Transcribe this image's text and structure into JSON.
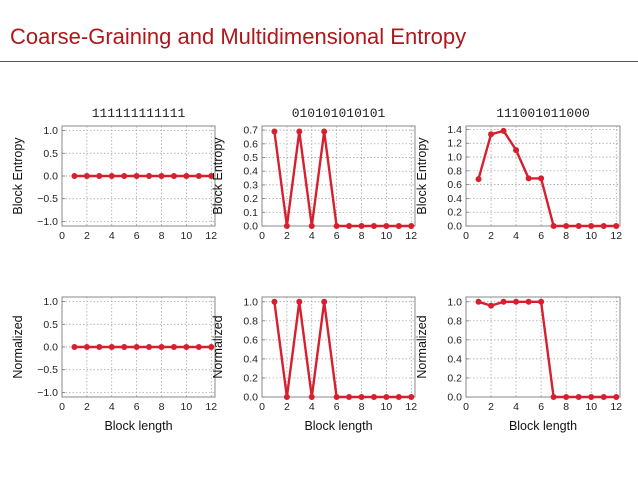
{
  "title": "Coarse-Graining and Multidimensional Entropy",
  "chart_data": [
    {
      "type": "line",
      "title": "111111111111",
      "xlabel": "",
      "ylabel": "Block Entropy",
      "xlim": [
        0,
        12.3
      ],
      "ylim": [
        -1.1,
        1.1
      ],
      "xticks": [
        0,
        2,
        4,
        6,
        8,
        10,
        12
      ],
      "yticks": [
        "1.0",
        "0.5",
        "0.0",
        "-0.5",
        "-1.0"
      ],
      "x": [
        1,
        2,
        3,
        4,
        5,
        6,
        7,
        8,
        9,
        10,
        11,
        12
      ],
      "values": [
        0,
        0,
        0,
        0,
        0,
        0,
        0,
        0,
        0,
        0,
        0,
        0
      ],
      "grid": true,
      "color": "#d6202f"
    },
    {
      "type": "line",
      "title": "010101010101",
      "xlabel": "",
      "ylabel": "Block Entropy",
      "xlim": [
        0,
        12.3
      ],
      "ylim": [
        0,
        0.73
      ],
      "xticks": [
        0,
        2,
        4,
        6,
        8,
        10,
        12
      ],
      "yticks": [
        "0.7",
        "0.6",
        "0.5",
        "0.4",
        "0.3",
        "0.2",
        "0.1",
        "0.0"
      ],
      "x": [
        1,
        2,
        3,
        4,
        5,
        6,
        7,
        8,
        9,
        10,
        11,
        12
      ],
      "values": [
        0.69,
        0,
        0.69,
        0,
        0.69,
        0,
        0,
        0,
        0,
        0,
        0,
        0
      ],
      "grid": true,
      "color": "#d6202f"
    },
    {
      "type": "line",
      "title": "111001011000",
      "xlabel": "",
      "ylabel": "Block Entropy",
      "xlim": [
        0,
        12.3
      ],
      "ylim": [
        0,
        1.45
      ],
      "xticks": [
        0,
        2,
        4,
        6,
        8,
        10,
        12
      ],
      "yticks": [
        "1.4",
        "1.2",
        "1.0",
        "0.8",
        "0.6",
        "0.4",
        "0.2",
        "0.0"
      ],
      "x": [
        1,
        2,
        3,
        4,
        5,
        6,
        7,
        8,
        9,
        10,
        11,
        12
      ],
      "values": [
        0.68,
        1.33,
        1.38,
        1.1,
        0.69,
        0.69,
        0,
        0,
        0,
        0,
        0,
        0
      ],
      "grid": true,
      "color": "#d6202f"
    },
    {
      "type": "line",
      "title": "",
      "xlabel": "Block length",
      "ylabel": "Normalized",
      "xlim": [
        0,
        12.3
      ],
      "ylim": [
        -1.1,
        1.1
      ],
      "xticks": [
        0,
        2,
        4,
        6,
        8,
        10,
        12
      ],
      "yticks": [
        "1.0",
        "0.5",
        "0.0",
        "-0.5",
        "-1.0"
      ],
      "x": [
        1,
        2,
        3,
        4,
        5,
        6,
        7,
        8,
        9,
        10,
        11,
        12
      ],
      "values": [
        0,
        0,
        0,
        0,
        0,
        0,
        0,
        0,
        0,
        0,
        0,
        0
      ],
      "grid": true,
      "color": "#d6202f"
    },
    {
      "type": "line",
      "title": "",
      "xlabel": "Block length",
      "ylabel": "Normalized",
      "xlim": [
        0,
        12.3
      ],
      "ylim": [
        0,
        1.05
      ],
      "xticks": [
        0,
        2,
        4,
        6,
        8,
        10,
        12
      ],
      "yticks": [
        "1.0",
        "0.8",
        "0.6",
        "0.4",
        "0.2",
        "0.0"
      ],
      "x": [
        1,
        2,
        3,
        4,
        5,
        6,
        7,
        8,
        9,
        10,
        11,
        12
      ],
      "values": [
        1,
        0,
        1,
        0,
        1,
        0,
        0,
        0,
        0,
        0,
        0,
        0
      ],
      "grid": true,
      "color": "#d6202f"
    },
    {
      "type": "line",
      "title": "",
      "xlabel": "Block length",
      "ylabel": "Normalized",
      "xlim": [
        0,
        12.3
      ],
      "ylim": [
        0,
        1.05
      ],
      "xticks": [
        0,
        2,
        4,
        6,
        8,
        10,
        12
      ],
      "yticks": [
        "1.0",
        "0.8",
        "0.6",
        "0.4",
        "0.2",
        "0.0"
      ],
      "x": [
        1,
        2,
        3,
        4,
        5,
        6,
        7,
        8,
        9,
        10,
        11,
        12
      ],
      "values": [
        1,
        0.96,
        1,
        1,
        1,
        1,
        0,
        0,
        0,
        0,
        0,
        0
      ],
      "grid": true,
      "color": "#d6202f"
    }
  ]
}
